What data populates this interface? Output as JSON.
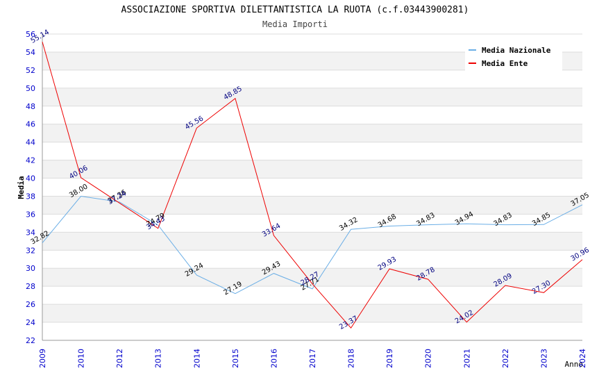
{
  "chart_data": {
    "type": "line",
    "title": "ASSOCIAZIONE SPORTIVA DILETTANTISTICA LA RUOTA (c.f.03443900281)",
    "subtitle": "Media Importi",
    "xlabel": "Anno",
    "ylabel": "Media",
    "ylim": [
      22,
      56
    ],
    "yticks": [
      "22",
      "24",
      "26",
      "28",
      "30",
      "32",
      "34",
      "36",
      "38",
      "40",
      "42",
      "44",
      "46",
      "48",
      "50",
      "52",
      "54",
      "56"
    ],
    "categories": [
      "2009",
      "2010",
      "2012",
      "2013",
      "2014",
      "2015",
      "2016",
      "2017",
      "2018",
      "2019",
      "2020",
      "2021",
      "2022",
      "2023",
      "2024"
    ],
    "grid": true,
    "legend_position": "top-right",
    "series": [
      {
        "name": "Media Nazionale",
        "color": "#6aaee6",
        "label_color": "#000000",
        "values": [
          32.82,
          38.0,
          37.36,
          34.79,
          29.24,
          27.19,
          29.43,
          27.71,
          34.32,
          34.68,
          34.83,
          34.94,
          34.83,
          34.85,
          37.05
        ],
        "labels": [
          "32.82",
          "38.00",
          "37.36",
          "34.79",
          "29.24",
          "27.19",
          "29.43",
          "27.71",
          "34.32",
          "34.68",
          "34.83",
          "34.94",
          "34.83",
          "34.85",
          "37.05"
        ]
      },
      {
        "name": "Media Ente",
        "color": "#ee0000",
        "label_color": "#000080",
        "values": [
          55.14,
          40.06,
          37.24,
          34.43,
          45.56,
          48.85,
          33.64,
          28.27,
          23.37,
          29.93,
          28.78,
          24.02,
          28.09,
          27.3,
          30.96
        ],
        "labels": [
          "55.14",
          "40.06",
          "37.24",
          "34.43",
          "45.56",
          "48.85",
          "33.64",
          "28.27",
          "23.37",
          "29.93",
          "28.78",
          "24.02",
          "28.09",
          "27.30",
          "30.96"
        ]
      }
    ]
  }
}
